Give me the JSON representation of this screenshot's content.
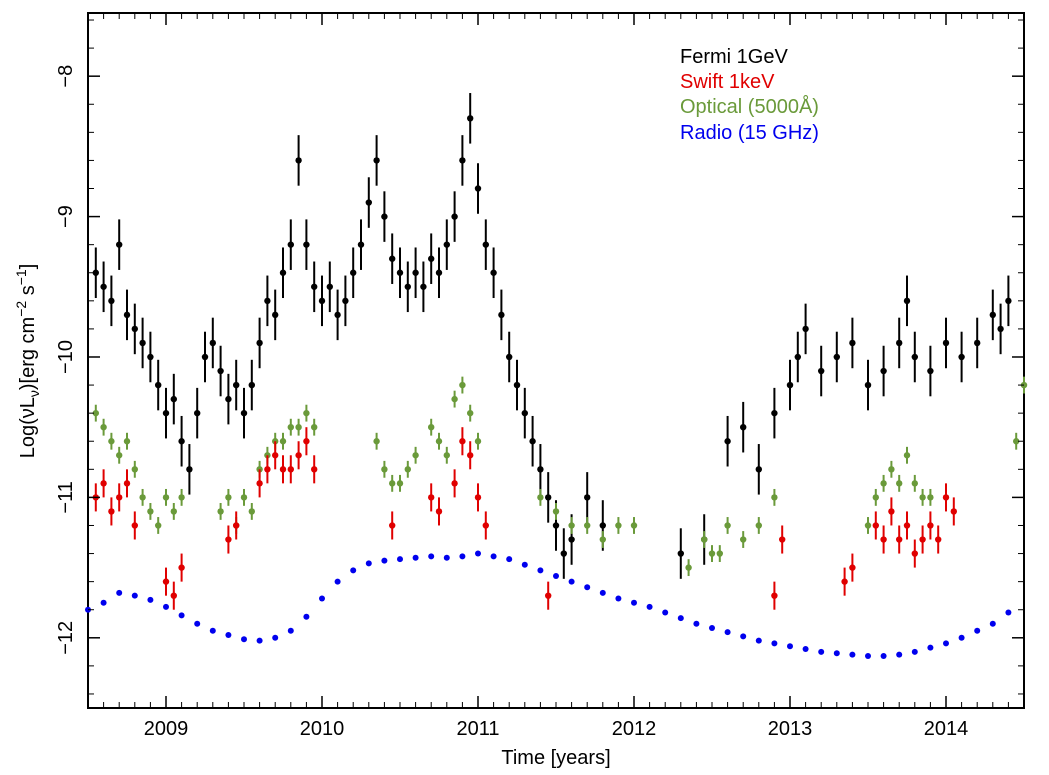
{
  "chart_data": {
    "type": "scatter",
    "title": "",
    "xlabel": "Time [years]",
    "ylabel": "Log(νL",
    "ylabel_sub": "ν",
    "ylabel_units": ")[erg cm",
    "ylabel_exp1": "−2",
    "ylabel_mid": " s",
    "ylabel_exp2": "−1",
    "ylabel_end": "]",
    "xlim": [
      2008.5,
      2014.5
    ],
    "ylim": [
      -12.5,
      -7.55
    ],
    "x_ticks": [
      2009,
      2010,
      2011,
      2012,
      2013,
      2014
    ],
    "x_tick_labels": [
      "2009",
      "2010",
      "2011",
      "2012",
      "2013",
      "2014"
    ],
    "y_ticks": [
      -12,
      -11,
      -10,
      -9,
      -8
    ],
    "y_tick_labels": [
      "−12",
      "−11",
      "−10",
      "−9",
      "−8"
    ],
    "grid": false,
    "legend_position": "top-right",
    "series": [
      {
        "name": "Fermi 1GeV",
        "color": "#000000",
        "x": [
          2008.55,
          2008.6,
          2008.65,
          2008.7,
          2008.75,
          2008.8,
          2008.85,
          2008.9,
          2008.95,
          2009.0,
          2009.05,
          2009.1,
          2009.15,
          2009.2,
          2009.25,
          2009.3,
          2009.35,
          2009.4,
          2009.45,
          2009.5,
          2009.55,
          2009.6,
          2009.65,
          2009.7,
          2009.75,
          2009.8,
          2009.85,
          2009.9,
          2009.95,
          2010.0,
          2010.05,
          2010.1,
          2010.15,
          2010.2,
          2010.25,
          2010.3,
          2010.35,
          2010.4,
          2010.45,
          2010.5,
          2010.55,
          2010.6,
          2010.65,
          2010.7,
          2010.75,
          2010.8,
          2010.85,
          2010.9,
          2010.95,
          2011.0,
          2011.05,
          2011.1,
          2011.15,
          2011.2,
          2011.25,
          2011.3,
          2011.35,
          2011.4,
          2011.45,
          2011.5,
          2011.55,
          2011.6,
          2011.7,
          2011.8,
          2012.3,
          2012.45,
          2012.6,
          2012.7,
          2012.8,
          2012.9,
          2013.0,
          2013.05,
          2013.1,
          2013.2,
          2013.3,
          2013.4,
          2013.5,
          2013.6,
          2013.7,
          2013.75,
          2013.8,
          2013.9,
          2014.0,
          2014.1,
          2014.2,
          2014.3,
          2014.35,
          2014.4
        ],
        "y": [
          -9.4,
          -9.5,
          -9.6,
          -9.2,
          -9.7,
          -9.8,
          -9.9,
          -10.0,
          -10.2,
          -10.4,
          -10.3,
          -10.6,
          -10.8,
          -10.4,
          -10.0,
          -9.9,
          -10.1,
          -10.3,
          -10.2,
          -10.4,
          -10.2,
          -9.9,
          -9.6,
          -9.7,
          -9.4,
          -9.2,
          -8.6,
          -9.2,
          -9.5,
          -9.6,
          -9.5,
          -9.7,
          -9.6,
          -9.4,
          -9.2,
          -8.9,
          -8.6,
          -9.0,
          -9.3,
          -9.4,
          -9.5,
          -9.4,
          -9.5,
          -9.3,
          -9.4,
          -9.2,
          -9.0,
          -8.6,
          -8.3,
          -8.8,
          -9.2,
          -9.4,
          -9.7,
          -10.0,
          -10.2,
          -10.4,
          -10.6,
          -10.8,
          -11.0,
          -11.2,
          -11.4,
          -11.3,
          -11.0,
          -11.2,
          -11.4,
          -11.3,
          -10.6,
          -10.5,
          -10.8,
          -10.4,
          -10.2,
          -10.0,
          -9.8,
          -10.1,
          -10.0,
          -9.9,
          -10.2,
          -10.1,
          -9.9,
          -9.6,
          -10.0,
          -10.1,
          -9.9,
          -10.0,
          -9.9,
          -9.7,
          -9.8,
          -9.6
        ]
      },
      {
        "name": "Swift 1keV",
        "color": "#e00000",
        "x": [
          2008.55,
          2008.6,
          2008.65,
          2008.7,
          2008.75,
          2008.8,
          2009.0,
          2009.05,
          2009.1,
          2009.4,
          2009.45,
          2009.6,
          2009.65,
          2009.7,
          2009.75,
          2009.8,
          2009.85,
          2009.9,
          2009.95,
          2010.45,
          2010.7,
          2010.75,
          2010.85,
          2010.9,
          2010.95,
          2011.0,
          2011.05,
          2011.45,
          2012.9,
          2012.95,
          2013.35,
          2013.4,
          2013.55,
          2013.6,
          2013.65,
          2013.7,
          2013.75,
          2013.8,
          2013.85,
          2013.9,
          2013.95,
          2014.0,
          2014.05
        ],
        "y": [
          -11.0,
          -10.9,
          -11.1,
          -11.0,
          -10.9,
          -11.2,
          -11.6,
          -11.7,
          -11.5,
          -11.3,
          -11.2,
          -10.9,
          -10.8,
          -10.7,
          -10.8,
          -10.8,
          -10.7,
          -10.6,
          -10.8,
          -11.2,
          -11.0,
          -11.1,
          -10.9,
          -10.6,
          -10.7,
          -11.0,
          -11.2,
          -11.7,
          -11.7,
          -11.3,
          -11.6,
          -11.5,
          -11.2,
          -11.3,
          -11.1,
          -11.3,
          -11.2,
          -11.4,
          -11.3,
          -11.2,
          -11.3,
          -11.0,
          -11.1
        ]
      },
      {
        "name": "Optical (5000Å)",
        "color": "#6a9a3a",
        "x": [
          2008.55,
          2008.6,
          2008.65,
          2008.7,
          2008.75,
          2008.8,
          2008.85,
          2008.9,
          2008.95,
          2009.0,
          2009.05,
          2009.1,
          2009.35,
          2009.4,
          2009.45,
          2009.5,
          2009.55,
          2009.6,
          2009.65,
          2009.7,
          2009.75,
          2009.8,
          2009.85,
          2009.9,
          2009.95,
          2010.35,
          2010.4,
          2010.45,
          2010.5,
          2010.55,
          2010.6,
          2010.7,
          2010.75,
          2010.8,
          2010.85,
          2010.9,
          2010.95,
          2011.0,
          2011.4,
          2011.5,
          2011.6,
          2011.7,
          2011.8,
          2011.9,
          2012.0,
          2012.35,
          2012.45,
          2012.5,
          2012.55,
          2012.6,
          2012.7,
          2012.8,
          2012.9,
          2013.5,
          2013.55,
          2013.6,
          2013.65,
          2013.7,
          2013.75,
          2013.8,
          2013.85,
          2013.9,
          2014.45,
          2014.5
        ],
        "y": [
          -10.4,
          -10.5,
          -10.6,
          -10.7,
          -10.6,
          -10.8,
          -11.0,
          -11.1,
          -11.2,
          -11.0,
          -11.1,
          -11.0,
          -11.1,
          -11.0,
          -11.2,
          -11.0,
          -11.1,
          -10.8,
          -10.7,
          -10.6,
          -10.6,
          -10.5,
          -10.5,
          -10.4,
          -10.5,
          -10.6,
          -10.8,
          -10.9,
          -10.9,
          -10.8,
          -10.7,
          -10.5,
          -10.6,
          -10.7,
          -10.3,
          -10.2,
          -10.4,
          -10.6,
          -11.0,
          -11.1,
          -11.2,
          -11.2,
          -11.3,
          -11.2,
          -11.2,
          -11.5,
          -11.3,
          -11.4,
          -11.4,
          -11.2,
          -11.3,
          -11.2,
          -11.0,
          -11.2,
          -11.0,
          -10.9,
          -10.8,
          -10.9,
          -10.7,
          -10.9,
          -11.0,
          -11.0,
          -10.6,
          -10.2
        ]
      },
      {
        "name": "Radio (15 GHz)",
        "color": "#0000ee",
        "x": [
          2008.5,
          2008.6,
          2008.7,
          2008.8,
          2008.9,
          2009.0,
          2009.1,
          2009.2,
          2009.3,
          2009.4,
          2009.5,
          2009.6,
          2009.7,
          2009.8,
          2009.9,
          2010.0,
          2010.1,
          2010.2,
          2010.3,
          2010.4,
          2010.5,
          2010.6,
          2010.7,
          2010.8,
          2010.9,
          2011.0,
          2011.1,
          2011.2,
          2011.3,
          2011.4,
          2011.5,
          2011.6,
          2011.7,
          2011.8,
          2011.9,
          2012.0,
          2012.1,
          2012.2,
          2012.3,
          2012.4,
          2012.5,
          2012.6,
          2012.7,
          2012.8,
          2012.9,
          2013.0,
          2013.1,
          2013.2,
          2013.3,
          2013.4,
          2013.5,
          2013.6,
          2013.7,
          2013.8,
          2013.9,
          2014.0,
          2014.1,
          2014.2,
          2014.3,
          2014.4
        ],
        "y": [
          -11.8,
          -11.75,
          -11.68,
          -11.7,
          -11.73,
          -11.78,
          -11.84,
          -11.9,
          -11.95,
          -11.98,
          -12.01,
          -12.02,
          -12.0,
          -11.95,
          -11.85,
          -11.72,
          -11.6,
          -11.52,
          -11.47,
          -11.45,
          -11.44,
          -11.43,
          -11.42,
          -11.43,
          -11.42,
          -11.4,
          -11.42,
          -11.44,
          -11.48,
          -11.52,
          -11.56,
          -11.6,
          -11.64,
          -11.68,
          -11.72,
          -11.75,
          -11.78,
          -11.82,
          -11.86,
          -11.9,
          -11.93,
          -11.96,
          -11.99,
          -12.02,
          -12.04,
          -12.06,
          -12.08,
          -12.1,
          -12.11,
          -12.12,
          -12.13,
          -12.13,
          -12.12,
          -12.1,
          -12.07,
          -12.04,
          -12.0,
          -11.95,
          -11.9,
          -11.82
        ]
      }
    ]
  }
}
